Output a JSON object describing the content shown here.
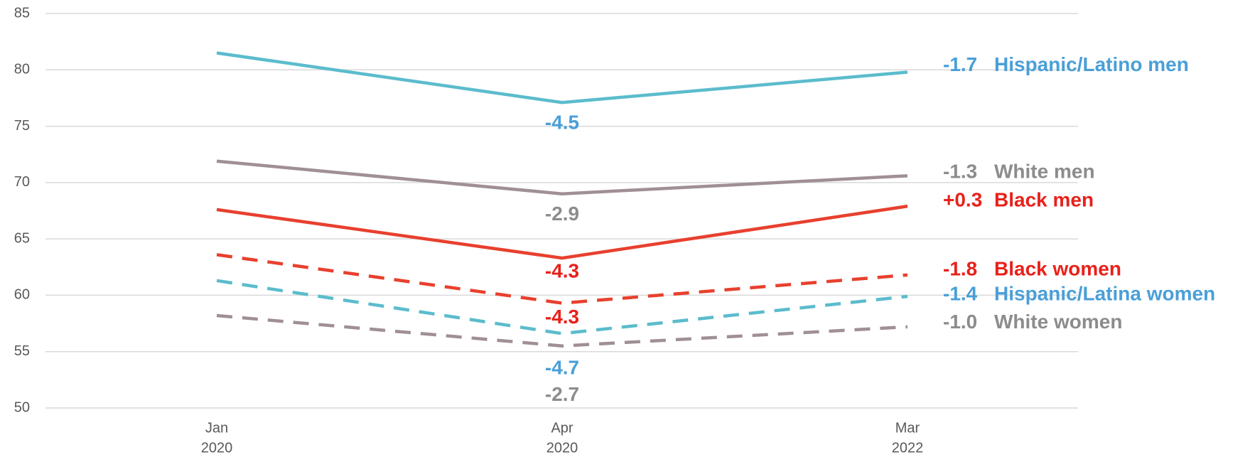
{
  "chart_data": {
    "type": "line",
    "categories": [
      [
        "Jan",
        "2020"
      ],
      [
        "Apr",
        "2020"
      ],
      [
        "Mar",
        "2022"
      ]
    ],
    "ylim": [
      50,
      85
    ],
    "yticks": [
      50,
      55,
      60,
      65,
      70,
      75,
      80,
      85
    ],
    "grid": true,
    "series": [
      {
        "name": "Hispanic/Latino men",
        "color": "#5bbccc",
        "label_color": "#4a9fd8",
        "dashed": false,
        "values": [
          81.5,
          77.1,
          79.8
        ],
        "drop_label": "-4.5",
        "change_label": "-1.7"
      },
      {
        "name": "White men",
        "color": "#a08f96",
        "label_color": "#8c8c8c",
        "dashed": false,
        "values": [
          71.9,
          69.0,
          70.6
        ],
        "drop_label": "-2.9",
        "change_label": "-1.3"
      },
      {
        "name": "Black men",
        "color": "#e8402e",
        "label_color": "#e8211b",
        "dashed": false,
        "values": [
          67.6,
          63.3,
          67.9
        ],
        "drop_label": "-4.3",
        "change_label": "+0.3"
      },
      {
        "name": "Black women",
        "color": "#e8402e",
        "label_color": "#e8211b",
        "dashed": true,
        "values": [
          63.6,
          59.3,
          61.8
        ],
        "drop_label": "-4.3",
        "change_label": "-1.8"
      },
      {
        "name": "Hispanic/Latina women",
        "color": "#5bbccc",
        "label_color": "#4a9fd8",
        "dashed": true,
        "values": [
          61.3,
          56.6,
          59.9
        ],
        "drop_label": "-4.7",
        "change_label": "-1.4"
      },
      {
        "name": "White women",
        "color": "#a08f96",
        "label_color": "#8c8c8c",
        "dashed": true,
        "values": [
          58.2,
          55.5,
          57.2
        ],
        "drop_label": "-2.7",
        "change_label": "-1.0"
      }
    ]
  }
}
